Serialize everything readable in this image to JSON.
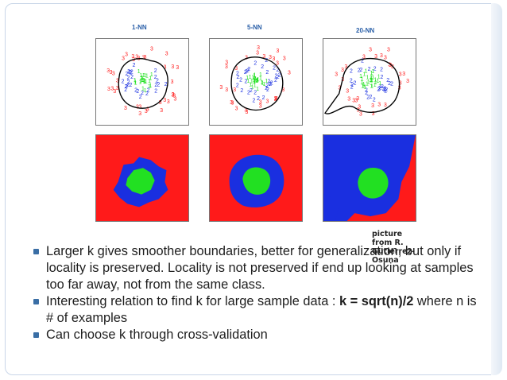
{
  "figure": {
    "panels": [
      {
        "title": "1-NN"
      },
      {
        "title": "5-NN"
      },
      {
        "title": "20-NN"
      }
    ],
    "credit": "picture from R. Gutierrez-Osuna",
    "colors": {
      "class_outer": "#ff1a1a",
      "class_middle": "#1a2fe0",
      "class_inner": "#22e022"
    }
  },
  "bullets": [
    {
      "text": "Larger k  gives smoother boundaries, better for generalization, but only if locality is preserved. Locality  is not preserved if end up looking at samples too far away, not from the same class.",
      "bold": ""
    },
    {
      "text": "Interesting relation to find k for large sample data :    ",
      "bold": "k = sqrt(n)/2",
      "tail": "  where n is # of examples"
    },
    {
      "text": "Can choose k through cross-validation",
      "bold": ""
    }
  ]
}
